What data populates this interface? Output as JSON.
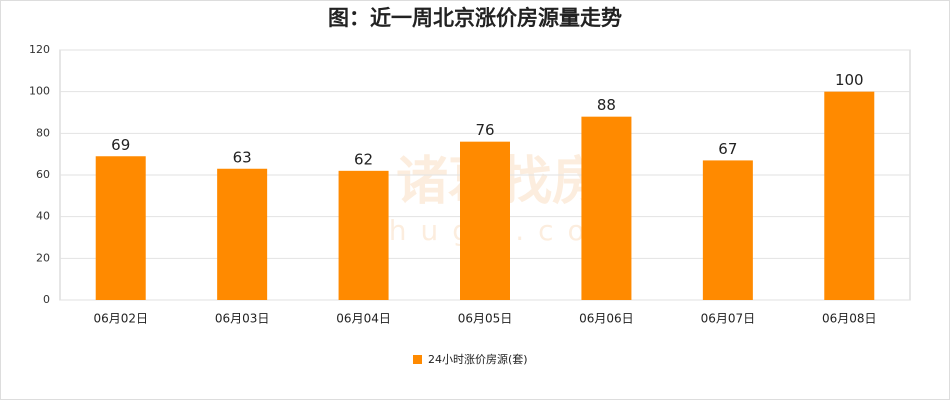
{
  "chart_data": {
    "type": "bar",
    "title": "图：近一周北京涨价房源量走势",
    "categories": [
      "06月02日",
      "06月03日",
      "06月04日",
      "06月05日",
      "06月06日",
      "06月07日",
      "06月08日"
    ],
    "series": [
      {
        "name": "24小时涨价房源(套)",
        "color": "#ff8a00",
        "values": [
          69,
          63,
          62,
          76,
          88,
          67,
          100
        ]
      }
    ],
    "ylim": [
      0,
      120
    ],
    "yticks": [
      0,
      20,
      40,
      60,
      80,
      100,
      120
    ],
    "grid": true,
    "legend": "bottom",
    "watermark": [
      "诸葛找房",
      "zhuge.com"
    ]
  }
}
